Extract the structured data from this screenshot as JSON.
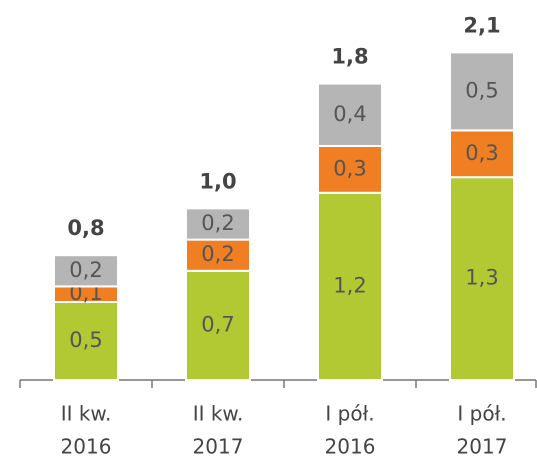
{
  "chart_data": {
    "type": "stacked_bar",
    "categories": [
      [
        "II kw.",
        "2016"
      ],
      [
        "II kw.",
        "2017"
      ],
      [
        "I pół.",
        "2016"
      ],
      [
        "I pół.",
        "2017"
      ]
    ],
    "series": [
      {
        "color": "#b3c934",
        "values": [
          0.5,
          0.7,
          1.2,
          1.3
        ],
        "value_labels": [
          "0,5",
          "0,7",
          "1,2",
          "1,3"
        ]
      },
      {
        "color": "#ef7f22",
        "values": [
          0.1,
          0.2,
          0.3,
          0.3
        ],
        "value_labels": [
          "0,1",
          "0,2",
          "0,3",
          "0,3"
        ]
      },
      {
        "color": "#b5b5b5",
        "values": [
          0.2,
          0.2,
          0.4,
          0.5
        ],
        "value_labels": [
          "0,2",
          "0,2",
          "0,4",
          "0,5"
        ]
      }
    ],
    "totals": [
      0.8,
      1.0,
      1.8,
      2.1
    ],
    "total_labels": [
      "0,8",
      "1,0",
      "1,8",
      "2,1"
    ]
  }
}
